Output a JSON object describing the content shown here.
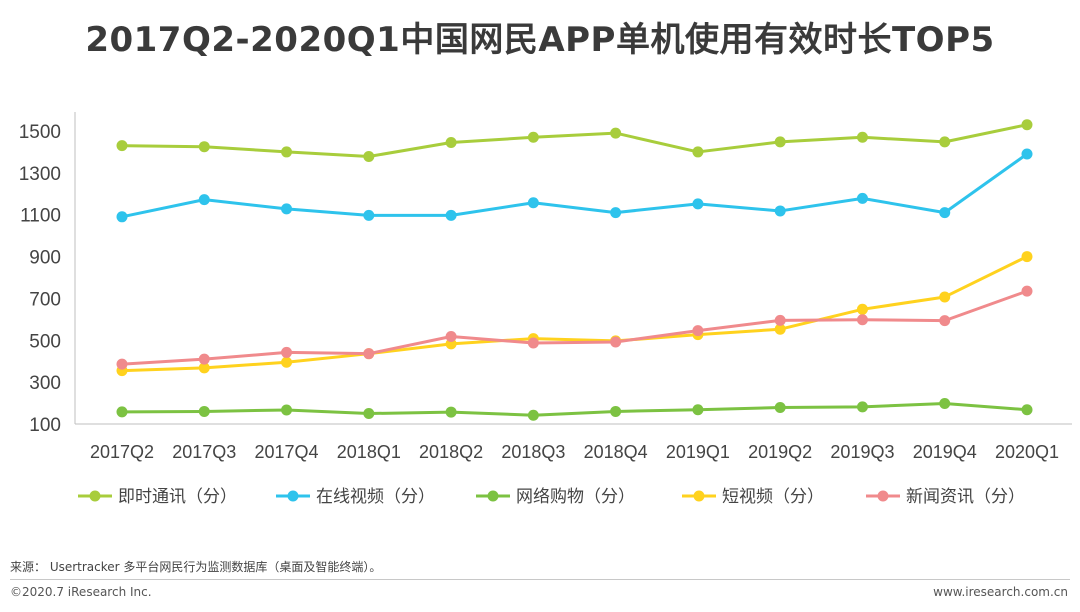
{
  "chart_data": {
    "type": "line",
    "title": "2017Q2-2020Q1中国网民APP单机使用有效时长TOP5",
    "xlabel": "",
    "ylabel": "",
    "ylim": [
      100,
      1550
    ],
    "yticks": [
      100,
      300,
      500,
      700,
      900,
      1100,
      1300,
      1500
    ],
    "grid": false,
    "legend_position": "bottom",
    "categories": [
      "2017Q2",
      "2017Q3",
      "2017Q4",
      "2018Q1",
      "2018Q2",
      "2018Q3",
      "2018Q4",
      "2019Q1",
      "2019Q2",
      "2019Q3",
      "2019Q4",
      "2020Q1"
    ],
    "series": [
      {
        "name": "即时通讯（分）",
        "color": "#a8cd3c",
        "values": [
          1430,
          1425,
          1400,
          1378,
          1445,
          1470,
          1490,
          1400,
          1448,
          1470,
          1448,
          1530
        ]
      },
      {
        "name": "在线视频（分）",
        "color": "#2ec3ec",
        "values": [
          1090,
          1172,
          1128,
          1097,
          1097,
          1157,
          1110,
          1152,
          1118,
          1178,
          1110,
          1390
        ]
      },
      {
        "name": "网络购物（分）",
        "color": "#7cc242",
        "values": [
          158,
          160,
          167,
          150,
          157,
          142,
          160,
          168,
          179,
          182,
          198,
          168
        ]
      },
      {
        "name": "短视频（分）",
        "color": "#ffd21e",
        "values": [
          355,
          368,
          395,
          436,
          483,
          508,
          497,
          527,
          553,
          648,
          707,
          900
        ]
      },
      {
        "name": "新闻资讯（分）",
        "color": "#f08a8c",
        "values": [
          386,
          410,
          442,
          436,
          518,
          487,
          492,
          546,
          595,
          598,
          594,
          735
        ]
      }
    ]
  },
  "source_text": "来源： Usertracker 多平台网民行为监测数据库（桌面及智能终端）。",
  "copyright": "©2020.7 iResearch Inc.",
  "website": "www.iresearch.com.cn"
}
